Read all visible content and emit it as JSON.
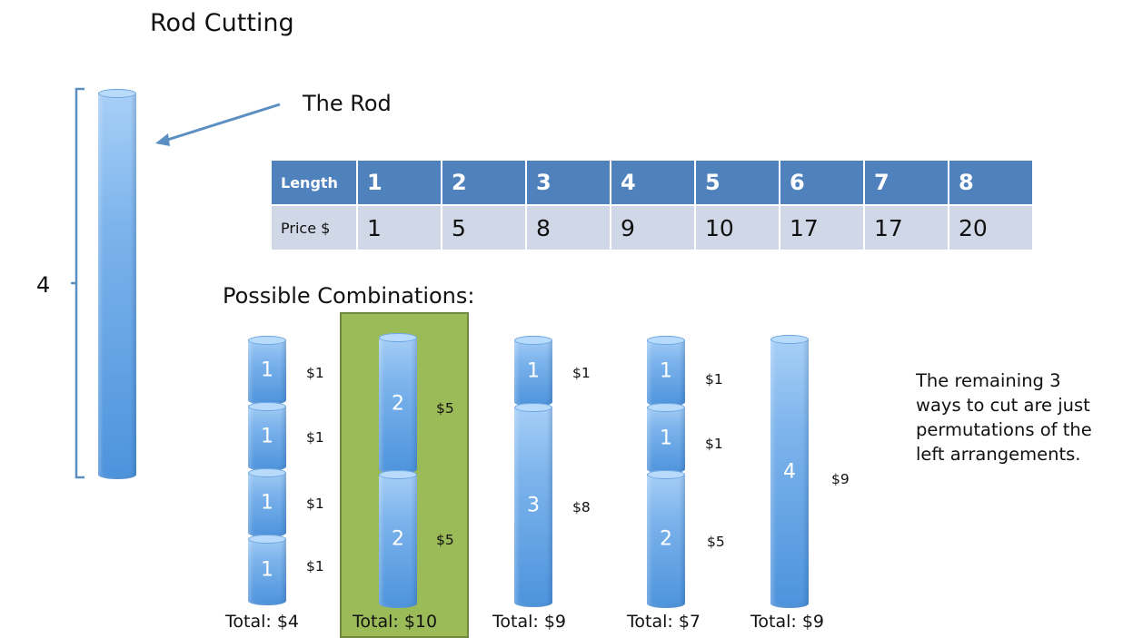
{
  "title": "Rod Cutting",
  "rod": {
    "label": "The Rod",
    "length_label": "4"
  },
  "table": {
    "header_label": "Length",
    "row_label": "Price $",
    "lengths": [
      "1",
      "2",
      "3",
      "4",
      "5",
      "6",
      "7",
      "8"
    ],
    "prices": [
      "1",
      "5",
      "8",
      "9",
      "10",
      "17",
      "17",
      "20"
    ]
  },
  "combinations_title": "Possible Combinations:",
  "combinations": [
    {
      "pieces": [
        {
          "num": "1",
          "price": "$1"
        },
        {
          "num": "1",
          "price": "$1"
        },
        {
          "num": "1",
          "price": "$1"
        },
        {
          "num": "1",
          "price": "$1"
        }
      ],
      "total": "Total: $4",
      "highlighted": false
    },
    {
      "pieces": [
        {
          "num": "2",
          "price": "$5"
        },
        {
          "num": "2",
          "price": "$5"
        }
      ],
      "total": "Total: $10",
      "highlighted": true
    },
    {
      "pieces": [
        {
          "num": "1",
          "price": "$1"
        },
        {
          "num": "3",
          "price": "$8"
        }
      ],
      "total": "Total: $9",
      "highlighted": false
    },
    {
      "pieces": [
        {
          "num": "1",
          "price": "$1"
        },
        {
          "num": "1",
          "price": "$1"
        },
        {
          "num": "2",
          "price": "$5"
        }
      ],
      "total": "Total: $7",
      "highlighted": false
    },
    {
      "pieces": [
        {
          "num": "4",
          "price": "$9"
        }
      ],
      "total": "Total: $9",
      "highlighted": false
    }
  ],
  "note": "The remaining 3 ways to cut are just permutations of the left arrangements.",
  "colors": {
    "table_header": "#4f81bd",
    "table_row": "#d0d8e8",
    "highlight": "#9bbb59",
    "rod": "#5b9bd5"
  }
}
